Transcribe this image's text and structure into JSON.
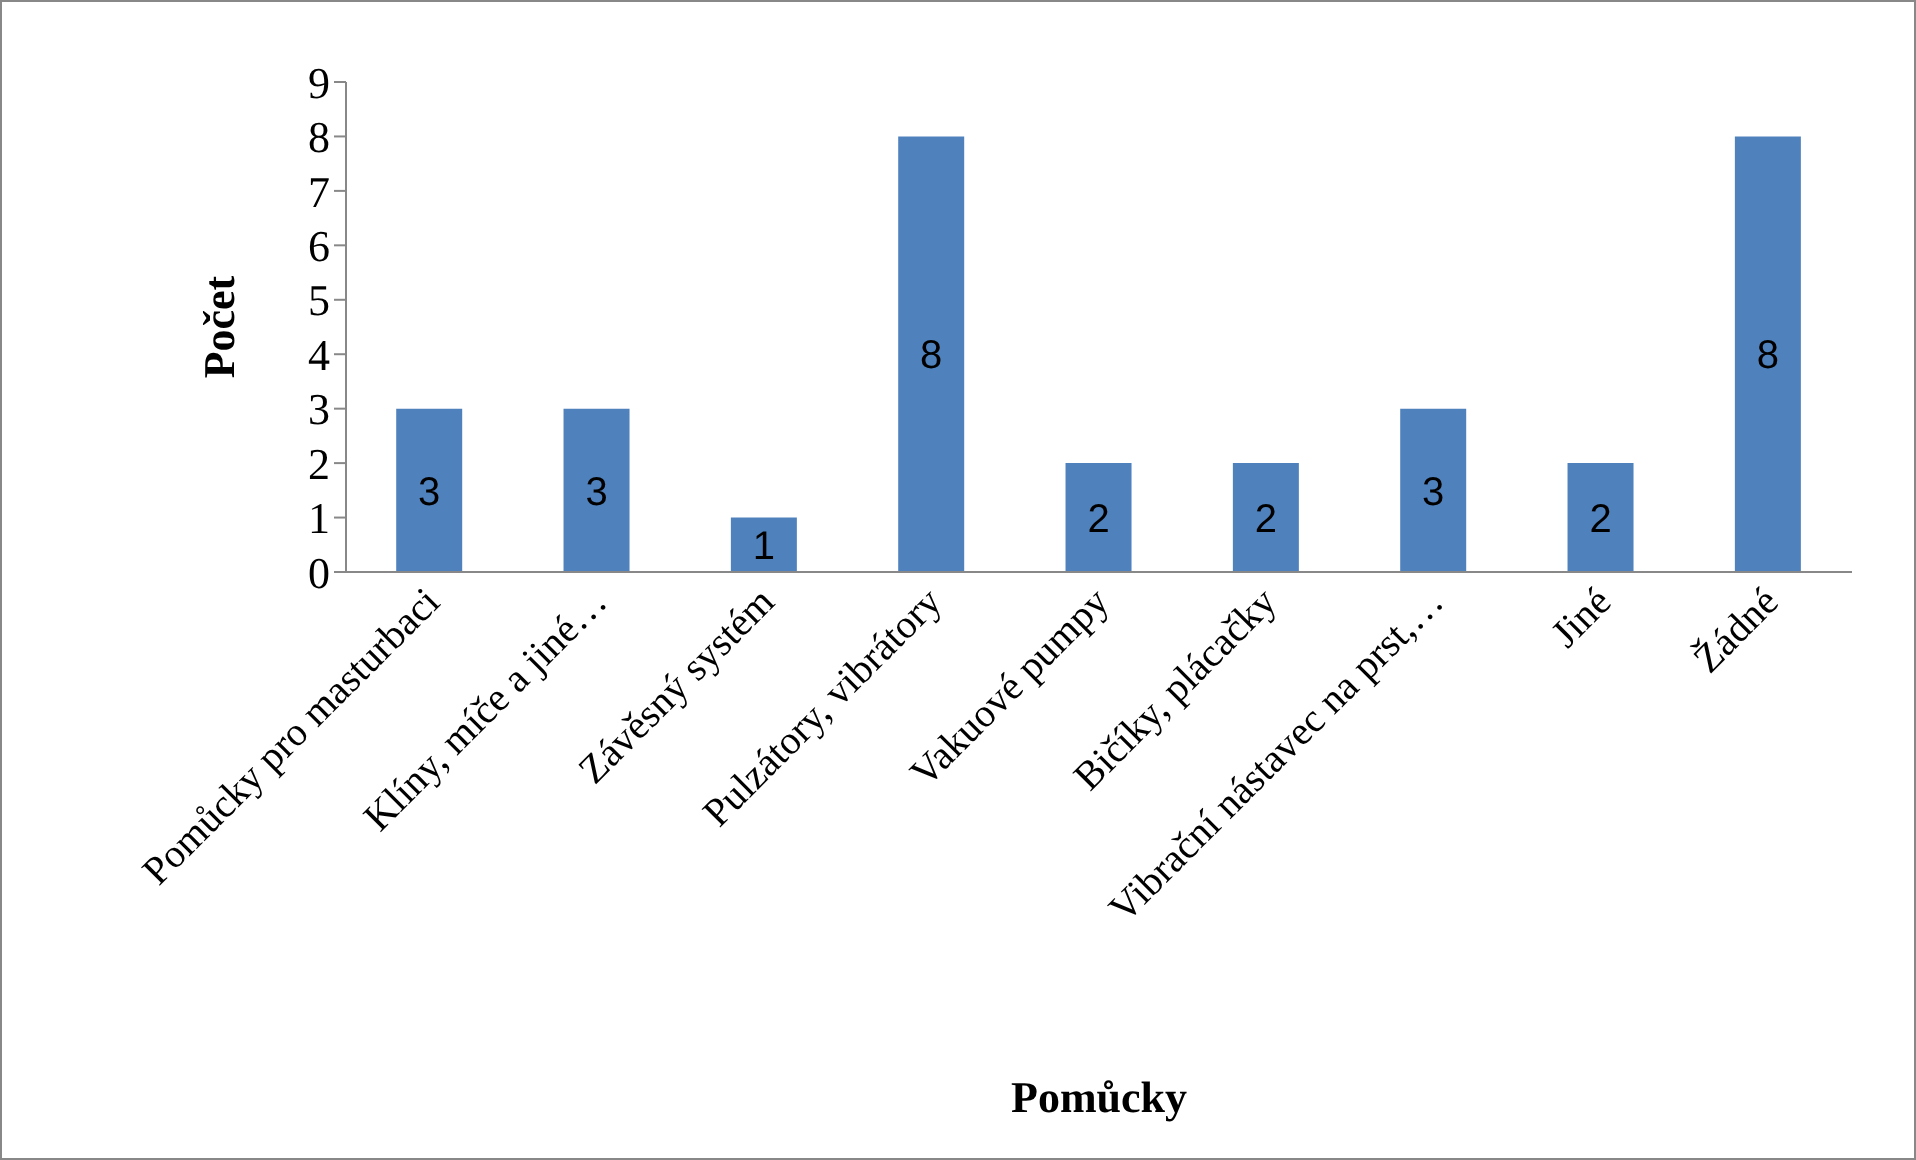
{
  "chart_data": {
    "type": "bar",
    "xlabel": "Pomůcky",
    "ylabel": "Počet",
    "categories": [
      "Pomůcky pro masturbaci",
      "Klíny, míče a jiné…",
      "Závěsný systém",
      "Pulzátory, vibrátory",
      "Vakuové pumpy",
      "Bičíky, plácačky",
      "Vibrační nástavec na prst,…",
      "Jiné",
      "Žádné"
    ],
    "values": [
      3,
      3,
      1,
      8,
      2,
      2,
      3,
      2,
      8
    ],
    "color": "#4f81bd",
    "ylim": [
      0,
      9
    ],
    "yticks": [
      0,
      1,
      2,
      3,
      4,
      5,
      6,
      7,
      8,
      9
    ],
    "data_labels": true
  }
}
